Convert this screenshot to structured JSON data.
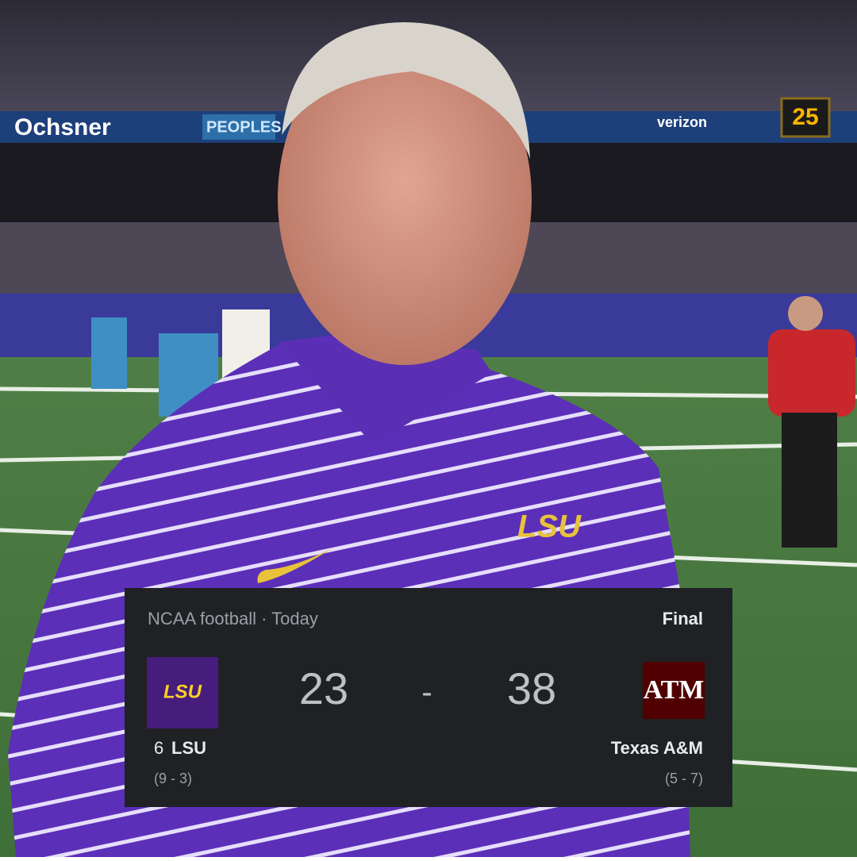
{
  "photo": {
    "signs": [
      "Ochsner",
      "PEOPLES",
      "verizon",
      "25"
    ],
    "shirt_logo": "LSU"
  },
  "card": {
    "header": "NCAA football · Today",
    "status": "Final",
    "separator": "-",
    "home": {
      "logo_text": "LSU",
      "rank": "6",
      "name": "LSU",
      "record": "(9 - 3)",
      "score": 23
    },
    "away": {
      "logo_text": "ATM",
      "name": "Texas A&M",
      "record": "(5 - 7)",
      "score": 38
    }
  }
}
